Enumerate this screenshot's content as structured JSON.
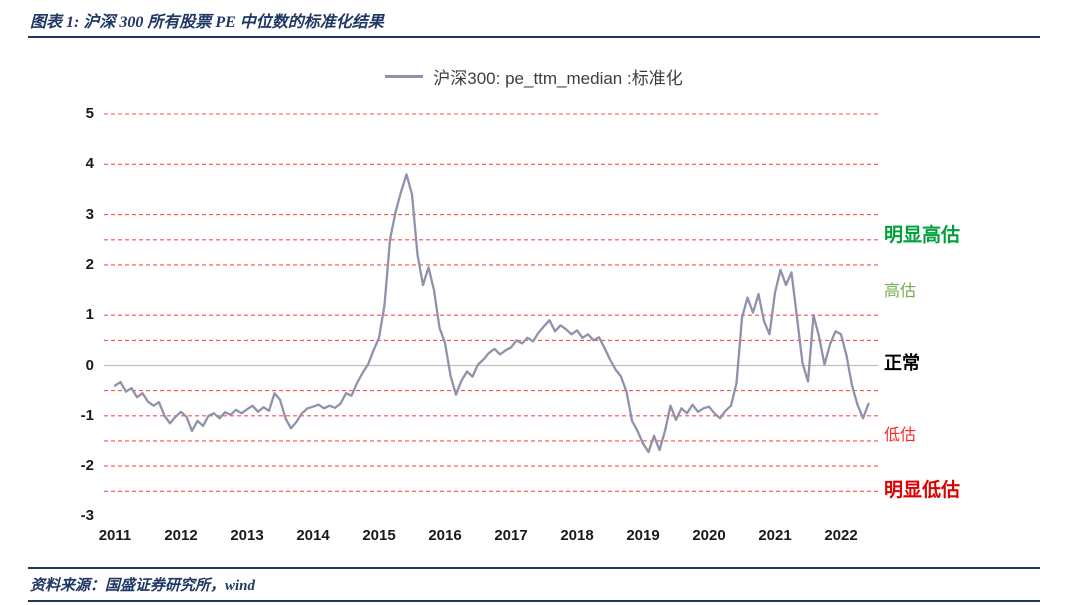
{
  "header": {
    "title": "图表 1: 沪深 300 所有股票 PE 中位数的标准化结果"
  },
  "footer": {
    "source": "资料来源：国盛证券研究所，wind"
  },
  "colors": {
    "navy_accent": "#1f3864",
    "gridline_red": "#ff4d4d",
    "zero_line_gray": "#bfbfbf",
    "series_gray": "#8f92aa",
    "strong_overvalued_green": "#00a13b",
    "overvalued_green": "#70ad47",
    "normal_black": "#000000",
    "undervalued_red": "#ff2a2a",
    "strong_undervalued_red": "#e00000"
  },
  "chart_data": {
    "type": "line",
    "title": "沪深300: pe_ttm_median :标准化",
    "xlabel": "",
    "ylabel": "",
    "ylim": [
      -3,
      5
    ],
    "x_ticks": [
      2011,
      2012,
      2013,
      2014,
      2015,
      2016,
      2017,
      2018,
      2019,
      2020,
      2021,
      2022
    ],
    "y_ticks": [
      5,
      4,
      3,
      2,
      1,
      0,
      -1,
      -2,
      -3
    ],
    "grid": "red dashed horizontal lines",
    "dashed_gridlines": [
      5,
      4,
      3,
      2.5,
      2,
      1,
      0.5,
      -0.5,
      -1,
      -1.5,
      -2,
      -2.5
    ],
    "zero_line": 0,
    "legend_position": "top-center",
    "x_unit": "monthly from 2011-01 to 2022-06",
    "series": [
      {
        "name": "沪深300: pe_ttm_median :标准化",
        "color": "#8f92aa",
        "values": [
          -0.4,
          -0.33,
          -0.52,
          -0.45,
          -0.63,
          -0.55,
          -0.72,
          -0.8,
          -0.73,
          -1.0,
          -1.15,
          -1.02,
          -0.92,
          -1.02,
          -1.3,
          -1.1,
          -1.2,
          -1.0,
          -0.95,
          -1.05,
          -0.93,
          -0.98,
          -0.88,
          -0.95,
          -0.87,
          -0.8,
          -0.92,
          -0.83,
          -0.9,
          -0.55,
          -0.68,
          -1.05,
          -1.25,
          -1.12,
          -0.95,
          -0.85,
          -0.82,
          -0.78,
          -0.85,
          -0.8,
          -0.84,
          -0.76,
          -0.55,
          -0.6,
          -0.35,
          -0.15,
          0.02,
          0.3,
          0.55,
          1.2,
          2.5,
          3.05,
          3.45,
          3.8,
          3.4,
          2.2,
          1.6,
          1.95,
          1.5,
          0.75,
          0.45,
          -0.2,
          -0.58,
          -0.3,
          -0.12,
          -0.22,
          0.02,
          0.12,
          0.25,
          0.33,
          0.22,
          0.3,
          0.36,
          0.5,
          0.44,
          0.55,
          0.48,
          0.65,
          0.78,
          0.9,
          0.68,
          0.8,
          0.72,
          0.62,
          0.7,
          0.55,
          0.62,
          0.5,
          0.56,
          0.35,
          0.12,
          -0.08,
          -0.22,
          -0.52,
          -1.1,
          -1.3,
          -1.55,
          -1.72,
          -1.4,
          -1.68,
          -1.3,
          -0.8,
          -1.08,
          -0.85,
          -0.95,
          -0.78,
          -0.92,
          -0.85,
          -0.82,
          -0.95,
          -1.05,
          -0.9,
          -0.8,
          -0.35,
          0.95,
          1.35,
          1.05,
          1.42,
          0.88,
          0.62,
          1.45,
          1.9,
          1.6,
          1.85,
          0.95,
          0.05,
          -0.32,
          1.0,
          0.58,
          0.02,
          0.42,
          0.68,
          0.62,
          0.2,
          -0.4,
          -0.78,
          -1.05,
          -0.76
        ]
      }
    ],
    "band_labels": [
      {
        "key": "strong-overvalued",
        "text": "明显高估",
        "value": 2.55,
        "color": "#00a13b",
        "bold": true,
        "size": 19
      },
      {
        "key": "overvalued",
        "text": "高估",
        "value": 1.45,
        "color": "#70ad47",
        "bold": false,
        "size": 16
      },
      {
        "key": "normal",
        "text": "正常",
        "value": 0.02,
        "color": "#000000",
        "bold": true,
        "size": 18
      },
      {
        "key": "undervalued",
        "text": "低估",
        "value": -1.4,
        "color": "#ff2a2a",
        "bold": false,
        "size": 16
      },
      {
        "key": "strong-undervalued",
        "text": "明显低估",
        "value": -2.52,
        "color": "#e00000",
        "bold": true,
        "size": 19
      }
    ]
  }
}
